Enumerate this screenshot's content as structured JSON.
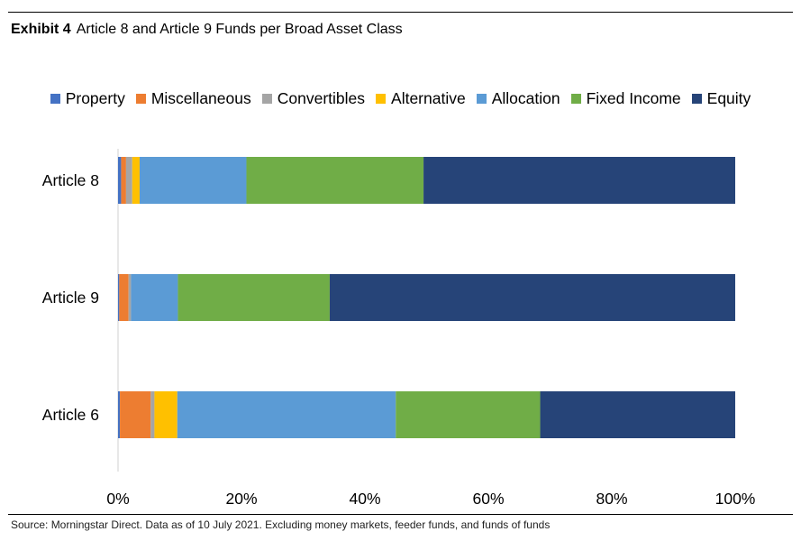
{
  "title": {
    "exhibit": "Exhibit 4",
    "text": "Article 8 and Article 9 Funds per Broad Asset Class"
  },
  "source": "Source: Morningstar Direct. Data as of 10 July 2021. Excluding money markets, feeder funds, and funds of funds",
  "chart_data": {
    "type": "bar",
    "orientation": "horizontal",
    "stacked": "percent",
    "categories": [
      "Article 8",
      "Article 9",
      "Article 6"
    ],
    "series": [
      {
        "name": "Property",
        "color": "#4472C4",
        "values": [
          0.5,
          0.2,
          0.3
        ]
      },
      {
        "name": "Miscellaneous",
        "color": "#ED7D31",
        "values": [
          0.8,
          1.5,
          5.0
        ]
      },
      {
        "name": "Convertibles",
        "color": "#A5A5A5",
        "values": [
          1.0,
          0.4,
          0.6
        ]
      },
      {
        "name": "Alternative",
        "color": "#FFC000",
        "values": [
          1.2,
          0.0,
          3.7
        ]
      },
      {
        "name": "Allocation",
        "color": "#5B9BD5",
        "values": [
          17.3,
          7.6,
          35.4
        ]
      },
      {
        "name": "Fixed Income",
        "color": "#70AD47",
        "values": [
          28.7,
          24.6,
          23.4
        ]
      },
      {
        "name": "Equity",
        "color": "#264478",
        "values": [
          50.5,
          65.7,
          31.6
        ]
      }
    ],
    "xlim": [
      0,
      100
    ],
    "x_ticks": [
      "0%",
      "20%",
      "40%",
      "60%",
      "80%",
      "100%"
    ],
    "legend_position": "top",
    "grid": false
  }
}
